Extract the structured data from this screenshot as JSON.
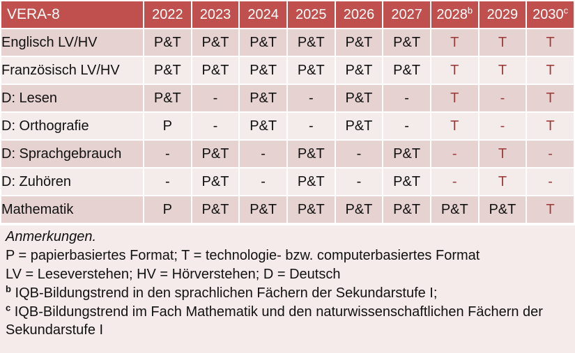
{
  "table": {
    "title": "VERA-8",
    "years": [
      {
        "label": "2022",
        "sup": ""
      },
      {
        "label": "2023",
        "sup": ""
      },
      {
        "label": "2024",
        "sup": ""
      },
      {
        "label": "2025",
        "sup": ""
      },
      {
        "label": "2026",
        "sup": ""
      },
      {
        "label": "2027",
        "sup": ""
      },
      {
        "label": "2028",
        "sup": "b"
      },
      {
        "label": "2029",
        "sup": ""
      },
      {
        "label": "2030",
        "sup": "c"
      }
    ],
    "rows": [
      {
        "label": "Englisch LV/HV",
        "cells": [
          {
            "t": "P&T",
            "red": false
          },
          {
            "t": "P&T",
            "red": false
          },
          {
            "t": "P&T",
            "red": false
          },
          {
            "t": "P&T",
            "red": false
          },
          {
            "t": "P&T",
            "red": false
          },
          {
            "t": "P&T",
            "red": false
          },
          {
            "t": "T",
            "red": true
          },
          {
            "t": "T",
            "red": true
          },
          {
            "t": "T",
            "red": true
          }
        ]
      },
      {
        "label": "Französisch LV/HV",
        "cells": [
          {
            "t": "P&T",
            "red": false
          },
          {
            "t": "P&T",
            "red": false
          },
          {
            "t": "P&T",
            "red": false
          },
          {
            "t": "P&T",
            "red": false
          },
          {
            "t": "P&T",
            "red": false
          },
          {
            "t": "P&T",
            "red": false
          },
          {
            "t": "T",
            "red": true
          },
          {
            "t": "T",
            "red": true
          },
          {
            "t": "T",
            "red": true
          }
        ]
      },
      {
        "label": "D: Lesen",
        "cells": [
          {
            "t": "P&T",
            "red": false
          },
          {
            "t": "-",
            "red": false
          },
          {
            "t": "P&T",
            "red": false
          },
          {
            "t": "-",
            "red": false
          },
          {
            "t": "P&T",
            "red": false
          },
          {
            "t": "-",
            "red": false
          },
          {
            "t": "T",
            "red": true
          },
          {
            "t": "-",
            "red": true
          },
          {
            "t": "T",
            "red": true
          }
        ]
      },
      {
        "label": "D: Orthografie",
        "cells": [
          {
            "t": "P",
            "red": false
          },
          {
            "t": "-",
            "red": false
          },
          {
            "t": "P&T",
            "red": false
          },
          {
            "t": "-",
            "red": false
          },
          {
            "t": "P&T",
            "red": false
          },
          {
            "t": "-",
            "red": false
          },
          {
            "t": "T",
            "red": true
          },
          {
            "t": "-",
            "red": true
          },
          {
            "t": "T",
            "red": true
          }
        ]
      },
      {
        "label": "D: Sprachgebrauch",
        "cells": [
          {
            "t": "-",
            "red": false
          },
          {
            "t": "P&T",
            "red": false
          },
          {
            "t": "-",
            "red": false
          },
          {
            "t": "P&T",
            "red": false
          },
          {
            "t": "-",
            "red": false
          },
          {
            "t": "P&T",
            "red": false
          },
          {
            "t": "-",
            "red": true
          },
          {
            "t": "T",
            "red": true
          },
          {
            "t": "-",
            "red": true
          }
        ]
      },
      {
        "label": "D: Zuhören",
        "cells": [
          {
            "t": "-",
            "red": false
          },
          {
            "t": "P&T",
            "red": false
          },
          {
            "t": "-",
            "red": false
          },
          {
            "t": "P&T",
            "red": false
          },
          {
            "t": "-",
            "red": false
          },
          {
            "t": "P&T",
            "red": false
          },
          {
            "t": "-",
            "red": true
          },
          {
            "t": "T",
            "red": true
          },
          {
            "t": "-",
            "red": true
          }
        ]
      },
      {
        "label": "Mathematik",
        "cells": [
          {
            "t": "P",
            "red": false
          },
          {
            "t": "P&T",
            "red": false
          },
          {
            "t": "P&T",
            "red": false
          },
          {
            "t": "P&T",
            "red": false
          },
          {
            "t": "P&T",
            "red": false
          },
          {
            "t": "P&T",
            "red": false
          },
          {
            "t": "P&T",
            "red": false
          },
          {
            "t": "P&T",
            "red": false
          },
          {
            "t": "T",
            "red": true
          }
        ]
      }
    ]
  },
  "notes": {
    "heading": "Anmerkungen.",
    "line_formats": "P = papierbasiertes Format; T = technologie- bzw. computerbasiertes Format",
    "line_abbreviations": "LV = Leseverstehen; HV = Hörverstehen; D = Deutsch",
    "footnote_b_marker": "b",
    "footnote_b_text": "IQB-Bildungstrend in den sprachlichen Fächern der Sekundarstufe I;",
    "footnote_c_marker": "c",
    "footnote_c_text": "IQB-Bildungstrend im Fach Mathematik und den naturwissenschaftlichen Fächern der Sekundarstufe I"
  },
  "colors": {
    "header_bg": "#c0504d",
    "header_text": "#ffffff",
    "row_band_dark": "#e7d2d2",
    "row_band_light": "#f4ebeb",
    "notes_bg": "#f5ebea",
    "accent_red": "#9c3e3c",
    "grid_border": "#ffffff"
  }
}
